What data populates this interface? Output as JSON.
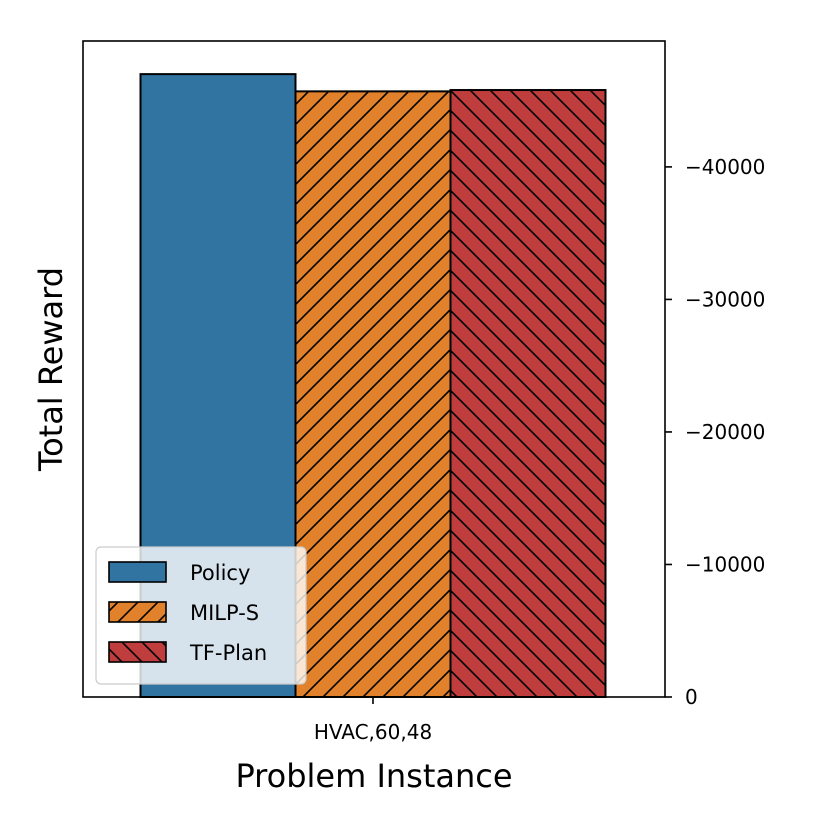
{
  "chart_data": {
    "type": "bar",
    "categories": [
      "HVAC,60,48"
    ],
    "series": [
      {
        "name": "Policy",
        "values": [
          -47000
        ],
        "color": "#3274a1",
        "hatch": "none"
      },
      {
        "name": "MILP-S",
        "values": [
          -45700
        ],
        "color": "#e1812c",
        "hatch": "forward-diagonal"
      },
      {
        "name": "TF-Plan",
        "values": [
          -45800
        ],
        "color": "#c03d3e",
        "hatch": "back-diagonal"
      }
    ],
    "xlabel": "Problem Instance",
    "ylabel": "Total Reward",
    "yaxis_side": "right",
    "yaxis_inverted": true,
    "ylim": [
      0,
      -49500
    ],
    "yticks": [
      0,
      -10000,
      -20000,
      -30000,
      -40000
    ],
    "ytick_labels": [
      "0",
      "−10000",
      "−20000",
      "−30000",
      "−40000"
    ],
    "legend_position": "lower-left",
    "grid": false
  }
}
